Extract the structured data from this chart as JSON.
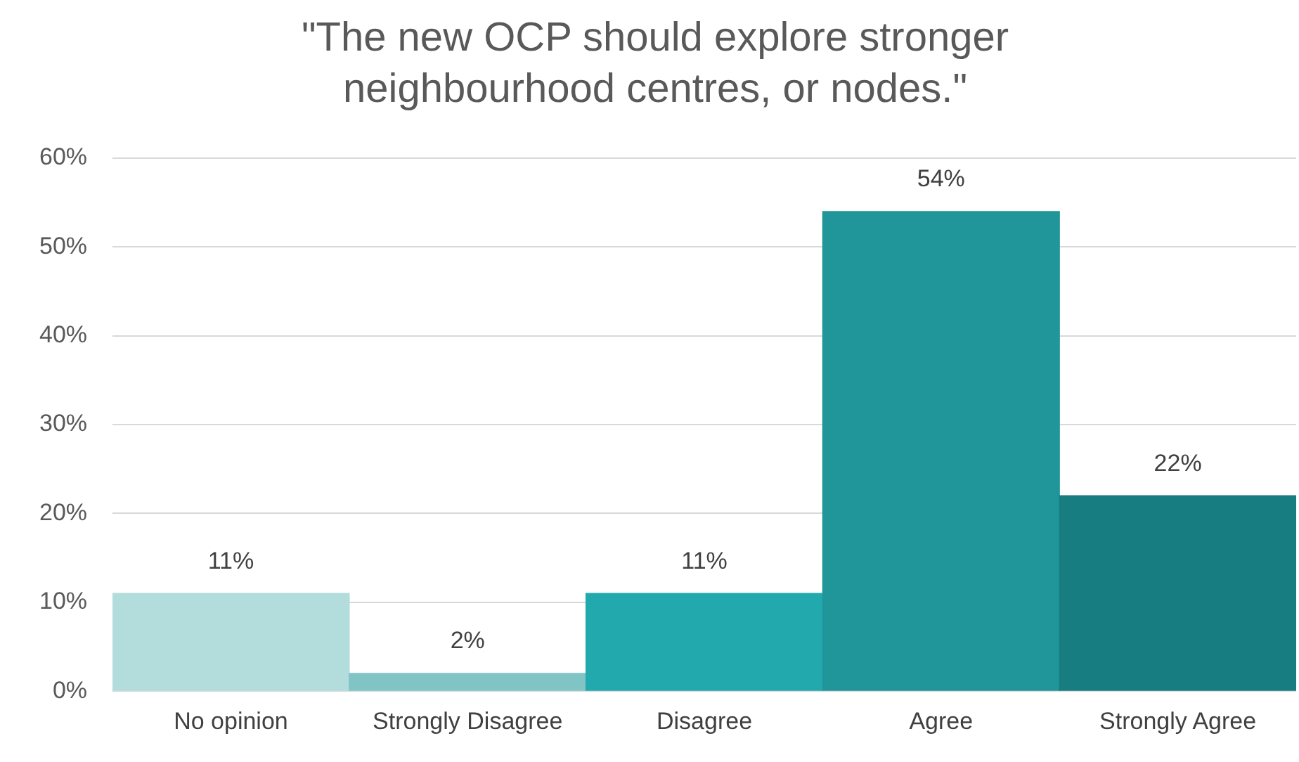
{
  "chart_data": {
    "type": "bar",
    "title": "\"The new OCP should explore stronger neighbourhood centres, or nodes.\"",
    "categories": [
      "No opinion",
      "Strongly Disagree",
      "Disagree",
      "Agree",
      "Strongly Agree"
    ],
    "values": [
      11,
      2,
      11,
      54,
      22
    ],
    "value_labels": [
      "11%",
      "2%",
      "11%",
      "54%",
      "22%"
    ],
    "colors": [
      "#b3dcdc",
      "#80c4c6",
      "#22a9ae",
      "#21969a",
      "#187d80"
    ],
    "ylim": [
      0,
      60
    ],
    "yticks": [
      {
        "value": 0,
        "label": "0%"
      },
      {
        "value": 10,
        "label": "10%"
      },
      {
        "value": 20,
        "label": "20%"
      },
      {
        "value": 30,
        "label": "30%"
      },
      {
        "value": 40,
        "label": "40%"
      },
      {
        "value": 50,
        "label": "50%"
      },
      {
        "value": 60,
        "label": "60%"
      }
    ],
    "grid": "y",
    "legend": false
  }
}
